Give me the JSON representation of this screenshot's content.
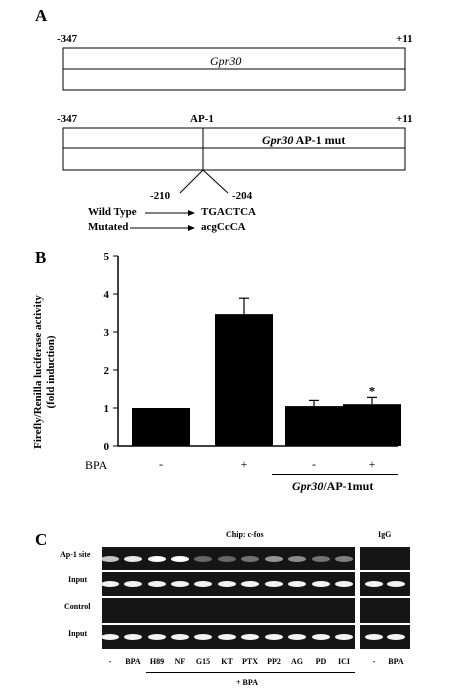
{
  "panel_a": {
    "label": "A",
    "row1": {
      "left": "-347",
      "right": "+11",
      "name": "Gpr30"
    },
    "row2": {
      "left": "-347",
      "site": "AP-1",
      "right": "+11",
      "name_italic": "Gpr30",
      "name_rest": " AP-1 mut",
      "pos_left": "-210",
      "pos_right": "-204"
    },
    "wild_label": "Wild Type",
    "wild_seq": "TGACTCA",
    "mut_label": "Mutated",
    "mut_seq": "acgCcCA"
  },
  "panel_b": {
    "label": "B",
    "ylabel": "Firefly/Renilla luciferase activity",
    "ylabel2": "(fold induction)",
    "bpa_label": "BPA",
    "group_italic": "Gpr30",
    "group_rest": "/AP-1mut",
    "star": "*"
  },
  "chart_data": {
    "type": "bar",
    "categories": [
      "-",
      "+",
      "-",
      "+"
    ],
    "values": [
      1.0,
      3.47,
      1.05,
      1.1
    ],
    "errors": [
      0.0,
      0.42,
      0.15,
      0.18
    ],
    "ylim": [
      0,
      5
    ],
    "yticks": [
      0,
      1,
      2,
      3,
      4,
      5
    ],
    "xlabel": "BPA",
    "ylabel": "Firefly/Renilla luciferase activity (fold induction)",
    "grid": false
  },
  "panel_c": {
    "label": "C",
    "chip_title": "Chip: c-fos",
    "igg_title": "IgG",
    "row_labels": [
      "Ap-1 site",
      "Input",
      "Control",
      "Input"
    ],
    "lanes": [
      "-",
      "BPA",
      "H89",
      "NF",
      "G15",
      "KT",
      "PTX",
      "PP2",
      "AG",
      "PD",
      "ICI"
    ],
    "igg_lanes": [
      "-",
      "BPA"
    ],
    "bpa_caption": "+ BPA",
    "ap1_intensity": [
      0.75,
      0.9,
      1.0,
      1.0,
      0.35,
      0.35,
      0.4,
      0.55,
      0.5,
      0.4,
      0.45
    ],
    "igg_ap1_intensity": [
      0,
      0
    ]
  }
}
